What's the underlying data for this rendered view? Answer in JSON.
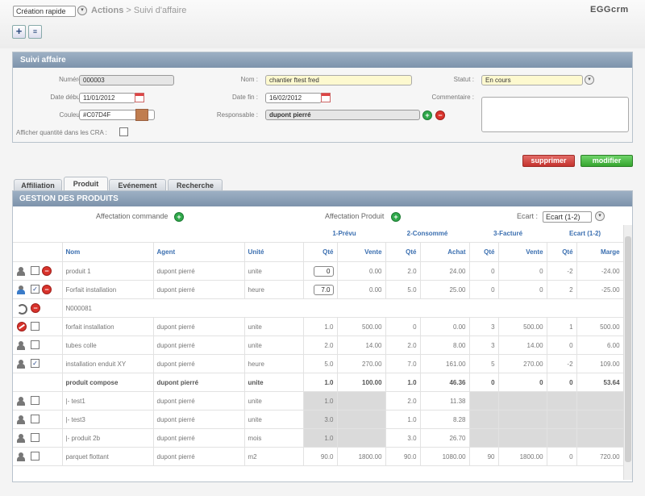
{
  "header": {
    "quick_select": "Création rapide",
    "breadcrumb_actions": "Actions",
    "breadcrumb_sep": ">",
    "breadcrumb_page": "Suivi d'affaire",
    "logo": "EGGcrm"
  },
  "panel": {
    "title": "Suivi affaire",
    "numero_label": "Numéro :",
    "numero": "000003",
    "nom_label": "Nom :",
    "nom": "chantier ftest fred",
    "statut_label": "Statut :",
    "statut": "En cours",
    "date_debut_label": "Date début :",
    "date_debut": "11/01/2012",
    "date_fin_label": "Date fin :",
    "date_fin": "16/02/2012",
    "commentaire_label": "Commentaire :",
    "couleur_label": "Couleur :",
    "couleur": "#C07D4F",
    "responsable_label": "Responsable :",
    "responsable": "dupont pierré",
    "afficher_label": "Afficher quantité dans les CRA :"
  },
  "buttons": {
    "supprimer": "supprimer",
    "modifier": "modifier"
  },
  "tabs": [
    {
      "label": "Affiliation"
    },
    {
      "label": "Produit"
    },
    {
      "label": "Evénement"
    },
    {
      "label": "Recherche"
    }
  ],
  "gestion": {
    "title": "GESTION DES PRODUITS",
    "affectation_commande": "Affectation commande",
    "affectation_produit": "Affectation Produit",
    "ecart_label": "Ecart :",
    "ecart_value": "Ecart (1-2)",
    "groups": [
      "1-Prévu",
      "2-Consommé",
      "3-Facturé",
      "Ecart (1-2)"
    ],
    "columns": [
      "Nom",
      "Agent",
      "Unité",
      "Qté",
      "Vente",
      "Qté",
      "Achat",
      "Qté",
      "Vente",
      "Qté",
      "Marge"
    ],
    "rows": [
      {
        "name": "produit 1",
        "agent": "dupont pierré",
        "unit": "unite",
        "q1": "0",
        "v1": "0.00",
        "q2": "2.0",
        "a2": "24.00",
        "q3": "0",
        "v3": "0",
        "qe": "-2",
        "m": "-24.00"
      },
      {
        "name": "Forfait installation",
        "agent": "dupont pierré",
        "unit": "heure",
        "q1": "7.0",
        "v1": "0.00",
        "q2": "5.0",
        "a2": "25.00",
        "q3": "0",
        "v3": "0",
        "qe": "2",
        "m": "-25.00"
      },
      {
        "name": "N000081"
      },
      {
        "name": "forfait installation",
        "agent": "dupont pierré",
        "unit": "unite",
        "q1": "1.0",
        "v1": "500.00",
        "q2": "0",
        "a2": "0.00",
        "q3": "3",
        "v3": "500.00",
        "qe": "1",
        "m": "500.00"
      },
      {
        "name": "tubes colle",
        "agent": "dupont pierré",
        "unit": "unite",
        "q1": "2.0",
        "v1": "14.00",
        "q2": "2.0",
        "a2": "8.00",
        "q3": "3",
        "v3": "14.00",
        "qe": "0",
        "m": "6.00"
      },
      {
        "name": "installation enduit XY",
        "agent": "dupont pierré",
        "unit": "heure",
        "q1": "5.0",
        "v1": "270.00",
        "q2": "7.0",
        "a2": "161.00",
        "q3": "5",
        "v3": "270.00",
        "qe": "-2",
        "m": "109.00"
      },
      {
        "name": "produit compose",
        "agent": "dupont pierré",
        "unit": "unite",
        "q1": "1.0",
        "v1": "100.00",
        "q2": "1.0",
        "a2": "46.36",
        "q3": "0",
        "v3": "0",
        "qe": "0",
        "m": "53.64"
      },
      {
        "name": "|- test1",
        "agent": "dupont pierré",
        "unit": "unite",
        "q1": "1.0",
        "q2": "2.0",
        "a2": "11.38"
      },
      {
        "name": "|- test3",
        "agent": "dupont pierré",
        "unit": "unite",
        "q1": "3.0",
        "q2": "1.0",
        "a2": "8.28"
      },
      {
        "name": "|- produit 2b",
        "agent": "dupont pierré",
        "unit": "mois",
        "q1": "1.0",
        "q2": "3.0",
        "a2": "26.70"
      },
      {
        "name": "parquet flottant",
        "agent": "dupont pierré",
        "unit": "m2",
        "q1": "90.0",
        "v1": "1800.00",
        "q2": "90.0",
        "a2": "1080.00",
        "q3": "90",
        "v3": "1800.00",
        "qe": "0",
        "m": "720.00"
      }
    ]
  },
  "colors": {
    "accent": "#3b6fb0",
    "header_bar": "#8ea3b9",
    "delete": "#c4332e",
    "save": "#36a52f"
  }
}
